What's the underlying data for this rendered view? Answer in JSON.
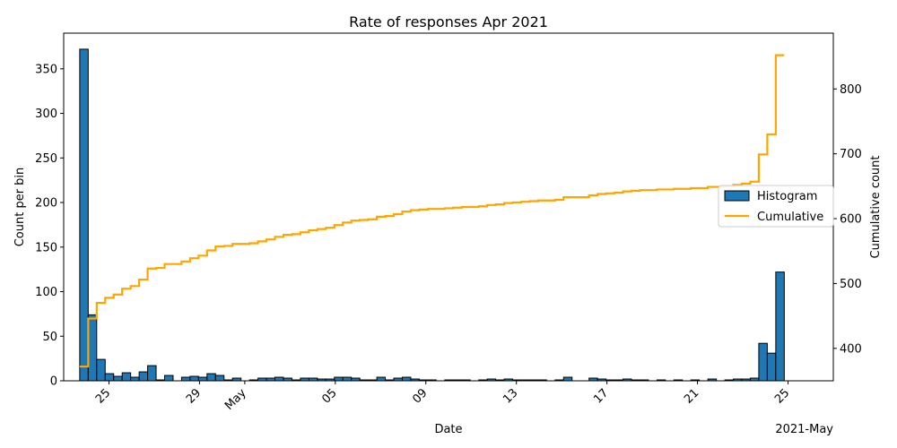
{
  "chart_data": {
    "type": "bar",
    "title": "Rate of responses Apr 2021",
    "xlabel": "Date",
    "ylabel_left": "Count per bin",
    "ylabel_right": "Cumulative count",
    "x_offset_label": "2021-May",
    "x_start": "2021-04-23T17:00",
    "bin_hours": 9,
    "xlim": [
      "2021-04-23T00:00",
      "2021-05-27T00:00"
    ],
    "ylim_left": [
      0,
      390
    ],
    "ylim_right": [
      350,
      886
    ],
    "grid": false,
    "legend_position": "center-right",
    "x_ticks": [
      {
        "date": "2021-04-25",
        "label": "25"
      },
      {
        "date": "2021-04-29",
        "label": "29"
      },
      {
        "date": "2021-05-01",
        "label": "May"
      },
      {
        "date": "2021-05-05",
        "label": "05"
      },
      {
        "date": "2021-05-09",
        "label": "09"
      },
      {
        "date": "2021-05-13",
        "label": "13"
      },
      {
        "date": "2021-05-17",
        "label": "17"
      },
      {
        "date": "2021-05-21",
        "label": "21"
      },
      {
        "date": "2021-05-25",
        "label": "25"
      }
    ],
    "y_ticks_left": [
      0,
      50,
      100,
      150,
      200,
      250,
      300,
      350
    ],
    "y_ticks_right": [
      400,
      500,
      600,
      700,
      800
    ],
    "series": [
      {
        "name": "Histogram",
        "type": "bar",
        "color": "#1f77b4",
        "values": [
          372,
          74,
          24,
          8,
          5,
          9,
          4,
          10,
          17,
          1,
          6,
          0,
          4,
          5,
          4,
          8,
          6,
          1,
          3,
          0,
          1,
          3,
          3,
          4,
          3,
          1,
          3,
          3,
          2,
          2,
          4,
          4,
          3,
          1,
          1,
          4,
          1,
          3,
          4,
          2,
          1,
          1,
          0,
          1,
          1,
          1,
          0,
          1,
          2,
          1,
          2,
          1,
          1,
          1,
          1,
          0,
          1,
          4,
          0,
          0,
          3,
          2,
          1,
          1,
          2,
          1,
          1,
          0,
          1,
          0,
          1,
          0,
          1,
          0,
          2,
          0,
          1,
          2,
          2,
          3,
          42,
          31,
          122
        ]
      },
      {
        "name": "Cumulative",
        "type": "line",
        "color": "#ffa500"
      }
    ]
  }
}
